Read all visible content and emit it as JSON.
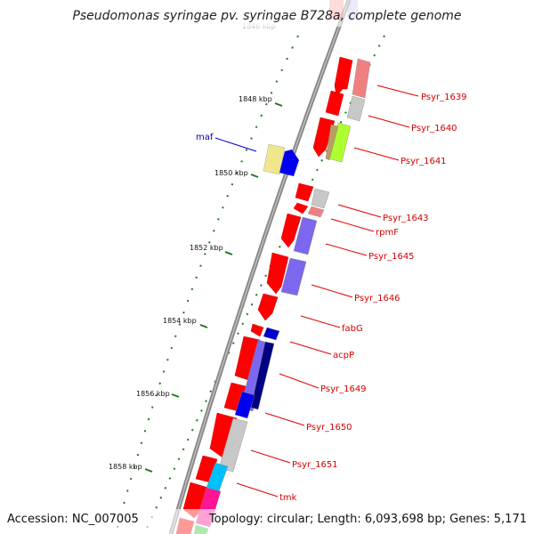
{
  "title": "Pseudomonas syringae pv. syringae B728a, complete genome",
  "footer": {
    "accession": "Accession: NC_007005",
    "summary": "Topology: circular; Length: 6,093,698 bp; Genes: 5,171"
  },
  "kbp_labels": [
    "1846 kbp",
    "1848 kbp",
    "1850 kbp",
    "1852 kbp",
    "1854 kbp",
    "1856 kbp",
    "1858 kbp"
  ],
  "gene_labels": [
    {
      "name": "maf",
      "color": "blue"
    },
    {
      "name": "Psyr_1639",
      "color": "red"
    },
    {
      "name": "Psyr_1640",
      "color": "red"
    },
    {
      "name": "Psyr_1641",
      "color": "red"
    },
    {
      "name": "Psyr_1643",
      "color": "red"
    },
    {
      "name": "rpmF",
      "color": "red"
    },
    {
      "name": "Psyr_1645",
      "color": "red"
    },
    {
      "name": "Psyr_1646",
      "color": "red"
    },
    {
      "name": "fabG",
      "color": "red"
    },
    {
      "name": "acpP",
      "color": "red"
    },
    {
      "name": "Psyr_1649",
      "color": "red"
    },
    {
      "name": "Psyr_1650",
      "color": "red"
    },
    {
      "name": "Psyr_1651",
      "color": "red"
    },
    {
      "name": "tmk",
      "color": "red"
    }
  ],
  "colors": {
    "backbone": "#8a8a8a",
    "gene": "#ff0000",
    "tick": "#1f7a1f",
    "label_line_red": "#e00000",
    "label_line_blue": "#0000dd",
    "blue_gene": "#0000ee",
    "yellow_gene": "#f0e68c",
    "pink_box": "#f08080",
    "gray_box": "#c8c8c8",
    "green_box": "#adff2f",
    "purple_box": "#7b68ee",
    "navy_box": "#000080",
    "cyan_box": "#00bfff",
    "magenta_box": "#ff1493"
  }
}
